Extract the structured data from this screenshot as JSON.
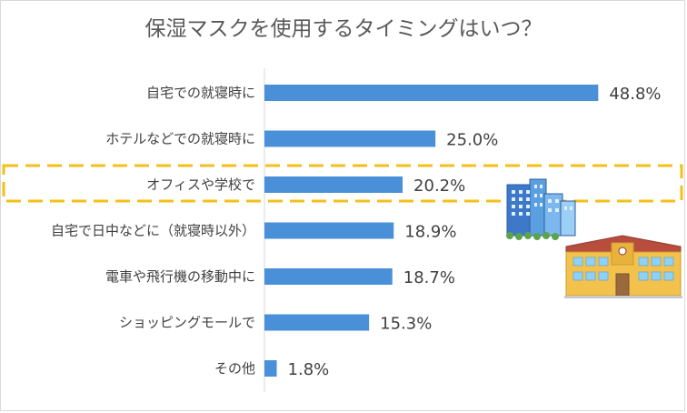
{
  "chart_data": {
    "type": "bar",
    "orientation": "horizontal",
    "title": "保湿マスクを使用するタイミングはいつ？",
    "categories": [
      "自宅での就寝時に",
      "ホテルなどでの就寝時に",
      "オフィスや学校で",
      "自宅で日中などに（就寝時以外）",
      "電車や飛行機の移動中に",
      "ショッピングモールで",
      "その他"
    ],
    "values": [
      48.8,
      25.0,
      20.2,
      18.9,
      18.7,
      15.3,
      1.8
    ],
    "value_labels": [
      "48.8%",
      "25.0%",
      "20.2%",
      "18.9%",
      "18.7%",
      "15.3%",
      "1.8%"
    ],
    "unit": "%",
    "xlim": [
      0,
      55
    ],
    "highlighted_category": "オフィスや学校で",
    "bar_color": "#4a90d9",
    "highlight_color": "#f3c01a"
  },
  "decorations": {
    "office_icon": "office-buildings-icon",
    "school_icon": "school-building-icon"
  }
}
